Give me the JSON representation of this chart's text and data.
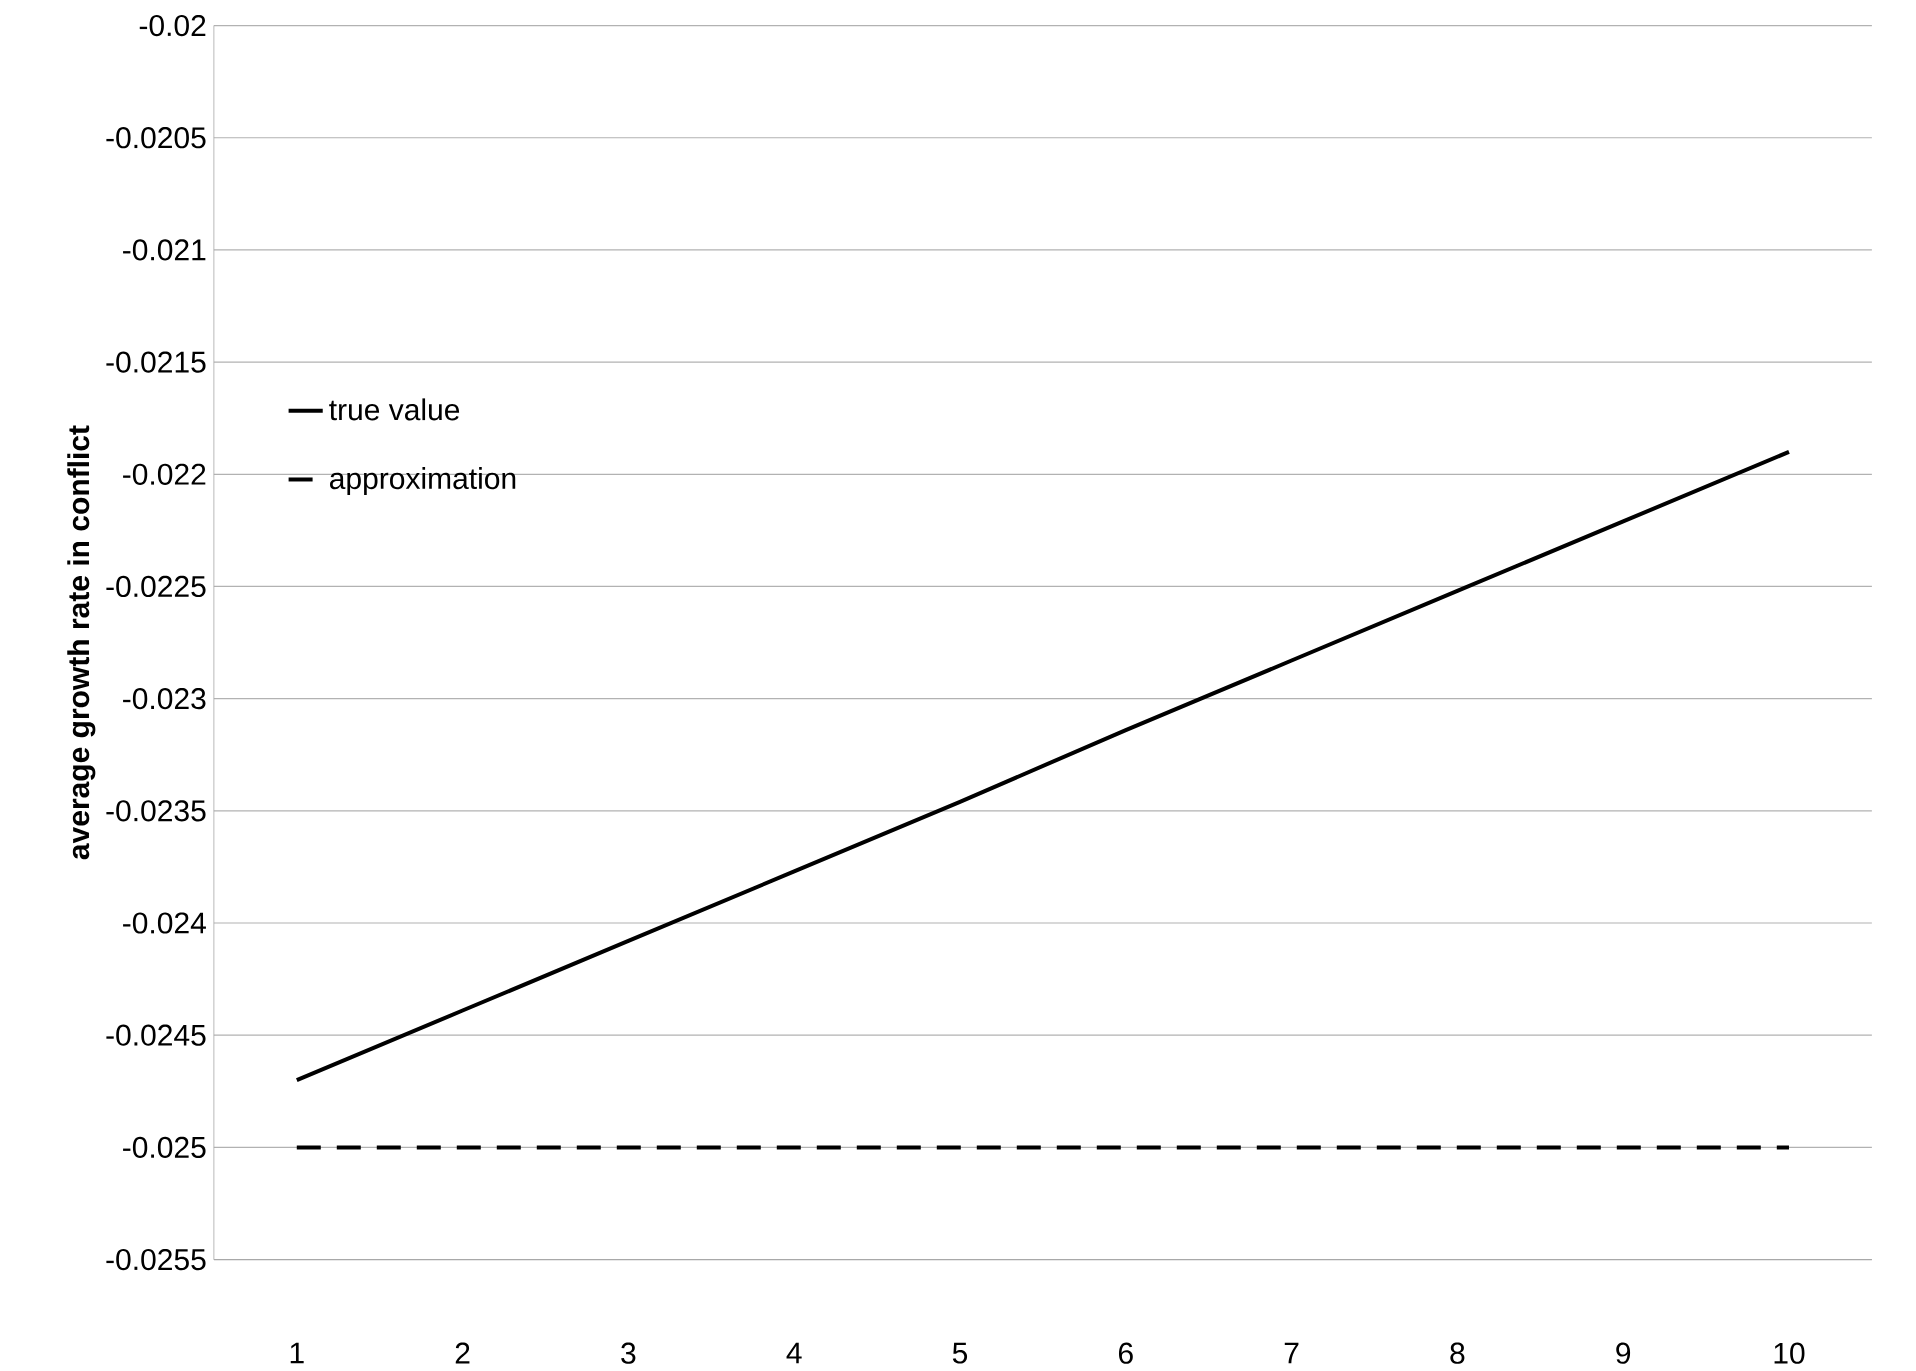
{
  "chart_data": {
    "type": "line",
    "ylabel": "average growth rate in conflict",
    "categories": [
      "1",
      "2",
      "3",
      "4",
      "5",
      "6",
      "7",
      "8",
      "9",
      "10"
    ],
    "series": [
      {
        "name": "true value",
        "color": "#000000",
        "line_style": "solid",
        "values": [
          -0.0247,
          -0.02439,
          -0.02408,
          -0.02377,
          -0.02346,
          -0.02314,
          -0.02283,
          -0.02252,
          -0.02221,
          -0.0219
        ]
      },
      {
        "name": "approximation",
        "color": "#000000",
        "line_style": "dashed",
        "values": [
          -0.025,
          -0.025,
          -0.025,
          -0.025,
          -0.025,
          -0.025,
          -0.025,
          -0.025,
          -0.025,
          -0.025
        ]
      }
    ],
    "ylim": [
      -0.0255,
      -0.02
    ],
    "yticks": [
      -0.0255,
      -0.025,
      -0.0245,
      -0.024,
      -0.0235,
      -0.023,
      -0.0225,
      -0.022,
      -0.0215,
      -0.021,
      -0.0205,
      -0.02
    ],
    "grid": "y",
    "legend": "left",
    "marker": "none"
  }
}
